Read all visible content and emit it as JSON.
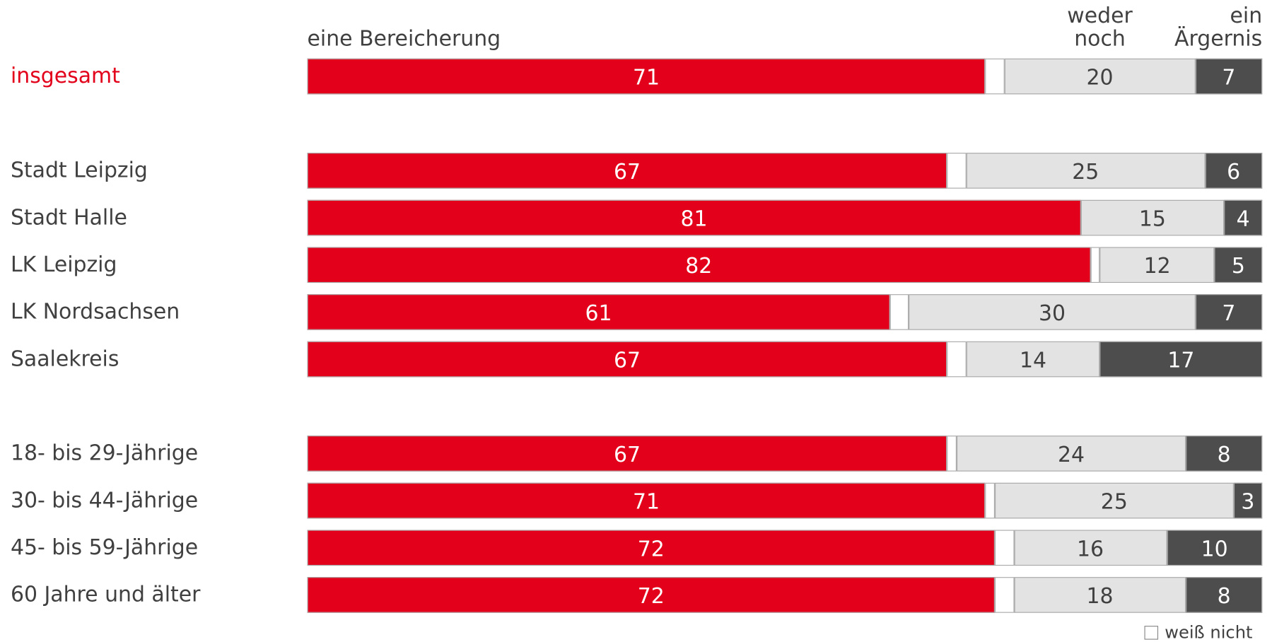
{
  "chart_data": {
    "type": "stacked-bar-horizontal",
    "categories": [
      "insgesamt",
      "Stadt Leipzig",
      "Stadt Halle",
      "LK Leipzig",
      "LK Nordsachsen",
      "Saalekreis",
      "18- bis 29-Jährige",
      "30- bis 44-Jährige",
      "45- bis 59-Jährige",
      "60 Jahre und älter"
    ],
    "xlim": [
      0,
      100
    ],
    "series": [
      {
        "name": "eine Bereicherung",
        "color": "#e2001a",
        "values": [
          71,
          67,
          81,
          82,
          61,
          67,
          67,
          71,
          72,
          72
        ]
      },
      {
        "name": "weiß nicht",
        "color": "#ffffff",
        "labeled": false,
        "values": [
          2,
          2,
          0,
          1,
          2,
          2,
          1,
          1,
          2,
          2
        ]
      },
      {
        "name": "weder noch",
        "color": "#e3e3e3",
        "values": [
          20,
          25,
          15,
          12,
          30,
          14,
          24,
          25,
          16,
          18
        ]
      },
      {
        "name": "ein Ärgernis",
        "color": "#4d4d4d",
        "values": [
          7,
          6,
          4,
          5,
          7,
          17,
          8,
          3,
          10,
          8
        ]
      }
    ]
  }
}
